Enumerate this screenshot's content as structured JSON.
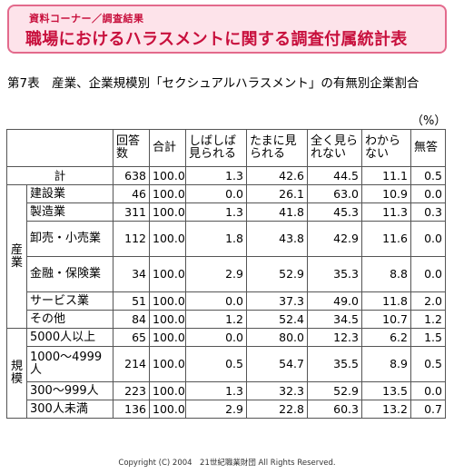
{
  "banner": {
    "subtitle": "資料コーナー／調査結果",
    "title": "職場におけるハラスメントに関する調査付属統計表"
  },
  "caption": "第7表　産業、企業規模別「セクシュアルハラスメント」の有無別企業割合",
  "unit": "（%）",
  "table": {
    "headers": [
      "回答数",
      "合計",
      "しばしば見られる",
      "たまに見られる",
      "全く見られない",
      "わからない",
      "無答"
    ],
    "total": {
      "label": "計",
      "values": [
        "638",
        "100.0",
        "1.3",
        "42.6",
        "44.5",
        "11.1",
        "0.5"
      ]
    },
    "groups": [
      {
        "label": "産業",
        "rows": [
          {
            "label": "建設業",
            "values": [
              "46",
              "100.0",
              "0.0",
              "26.1",
              "63.0",
              "10.9",
              "0.0"
            ]
          },
          {
            "label": "製造業",
            "values": [
              "311",
              "100.0",
              "1.3",
              "41.8",
              "45.3",
              "11.3",
              "0.3"
            ]
          },
          {
            "label": "卸売・小売業",
            "values": [
              "112",
              "100.0",
              "1.8",
              "43.8",
              "42.9",
              "11.6",
              "0.0"
            ]
          },
          {
            "label": "金融・保険業",
            "values": [
              "34",
              "100.0",
              "2.9",
              "52.9",
              "35.3",
              "8.8",
              "0.0"
            ]
          },
          {
            "label": "サービス業",
            "values": [
              "51",
              "100.0",
              "0.0",
              "37.3",
              "49.0",
              "11.8",
              "2.0"
            ]
          },
          {
            "label": "その他",
            "values": [
              "84",
              "100.0",
              "1.2",
              "52.4",
              "34.5",
              "10.7",
              "1.2"
            ]
          }
        ]
      },
      {
        "label": "規模",
        "rows": [
          {
            "label": "5000人以上",
            "values": [
              "65",
              "100.0",
              "0.0",
              "80.0",
              "12.3",
              "6.2",
              "1.5"
            ]
          },
          {
            "label": "1000～4999人",
            "values": [
              "214",
              "100.0",
              "0.5",
              "54.7",
              "35.5",
              "8.9",
              "0.5"
            ]
          },
          {
            "label": "300～999人",
            "values": [
              "223",
              "100.0",
              "1.3",
              "32.3",
              "52.9",
              "13.5",
              "0.0"
            ]
          },
          {
            "label": "300人未満",
            "values": [
              "136",
              "100.0",
              "2.9",
              "22.8",
              "60.3",
              "13.2",
              "0.7"
            ]
          }
        ]
      }
    ]
  },
  "footer": "Copyright (C) 2004　21世紀職業財団 All Rights Reserved."
}
